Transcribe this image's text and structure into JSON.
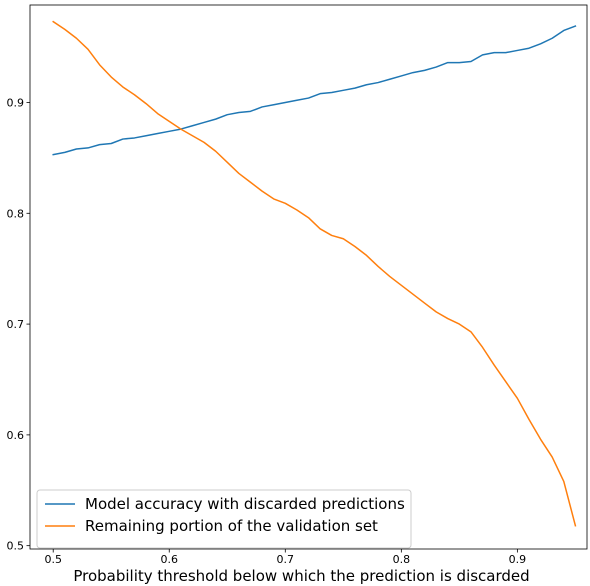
{
  "chart_data": {
    "type": "line",
    "title": "",
    "xlabel": "Probability threshold below which the prediction is discarded",
    "ylabel": "",
    "xlim": [
      0.48,
      0.96
    ],
    "ylim": [
      0.497,
      0.988
    ],
    "xticks": [
      0.5,
      0.6,
      0.7,
      0.8,
      0.9
    ],
    "xtick_labels": [
      "0.5",
      "0.6",
      "0.7",
      "0.8",
      "0.9"
    ],
    "yticks": [
      0.5,
      0.6,
      0.7,
      0.8,
      0.9
    ],
    "ytick_labels": [
      "0.5",
      "0.6",
      "0.7",
      "0.8",
      "0.9"
    ],
    "grid": false,
    "legend_position": "lower-left",
    "series": [
      {
        "name": "Model accuracy with discarded predictions",
        "color": "#1f77b4",
        "x": [
          0.5,
          0.51,
          0.52,
          0.53,
          0.54,
          0.55,
          0.56,
          0.57,
          0.58,
          0.59,
          0.6,
          0.61,
          0.62,
          0.63,
          0.64,
          0.65,
          0.66,
          0.67,
          0.68,
          0.69,
          0.7,
          0.71,
          0.72,
          0.73,
          0.74,
          0.75,
          0.76,
          0.77,
          0.78,
          0.79,
          0.8,
          0.81,
          0.82,
          0.83,
          0.84,
          0.85,
          0.86,
          0.87,
          0.88,
          0.89,
          0.9,
          0.91,
          0.92,
          0.93,
          0.94,
          0.95
        ],
        "y": [
          0.853,
          0.855,
          0.858,
          0.859,
          0.862,
          0.863,
          0.867,
          0.868,
          0.87,
          0.872,
          0.874,
          0.876,
          0.879,
          0.882,
          0.885,
          0.889,
          0.891,
          0.892,
          0.896,
          0.898,
          0.9,
          0.902,
          0.904,
          0.908,
          0.909,
          0.911,
          0.913,
          0.916,
          0.918,
          0.921,
          0.924,
          0.927,
          0.929,
          0.932,
          0.936,
          0.936,
          0.937,
          0.943,
          0.945,
          0.945,
          0.947,
          0.949,
          0.953,
          0.958,
          0.965,
          0.969
        ]
      },
      {
        "name": "Remaining portion of the validation set",
        "color": "#ff7f0e",
        "x": [
          0.5,
          0.51,
          0.52,
          0.53,
          0.54,
          0.55,
          0.56,
          0.57,
          0.58,
          0.59,
          0.6,
          0.61,
          0.62,
          0.63,
          0.64,
          0.65,
          0.66,
          0.67,
          0.68,
          0.69,
          0.7,
          0.71,
          0.72,
          0.73,
          0.74,
          0.75,
          0.76,
          0.77,
          0.78,
          0.79,
          0.8,
          0.81,
          0.82,
          0.83,
          0.84,
          0.85,
          0.86,
          0.87,
          0.88,
          0.89,
          0.9,
          0.91,
          0.92,
          0.93,
          0.94,
          0.95
        ],
        "y": [
          0.973,
          0.966,
          0.958,
          0.948,
          0.934,
          0.923,
          0.914,
          0.907,
          0.899,
          0.89,
          0.883,
          0.876,
          0.87,
          0.864,
          0.856,
          0.846,
          0.836,
          0.828,
          0.82,
          0.813,
          0.809,
          0.803,
          0.796,
          0.786,
          0.78,
          0.777,
          0.77,
          0.762,
          0.752,
          0.743,
          0.735,
          0.727,
          0.719,
          0.711,
          0.705,
          0.7,
          0.693,
          0.679,
          0.663,
          0.648,
          0.633,
          0.614,
          0.596,
          0.58,
          0.558,
          0.518
        ]
      }
    ]
  }
}
